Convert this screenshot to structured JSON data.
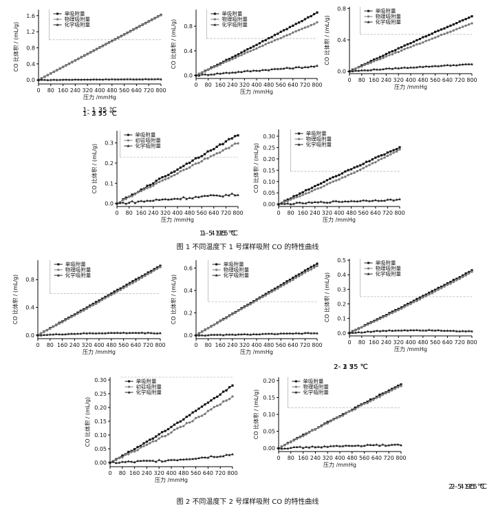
{
  "figure_captions": [
    "图 1    不同温度下 1 号煤样吸附 CO 的特性曲线",
    "图 2    不同温度下 2 号煤样吸附 CO 的特性曲线"
  ],
  "series_colors": [
    "#111111",
    "#7a7a7a",
    "#222222"
  ],
  "chart_data": [
    {
      "id": "1-1",
      "type": "line",
      "caption": "1- 1    35 ℃",
      "xlabel": "压力 /mmHg",
      "ylabel": "CO 比体积 / (mL/g)",
      "xlim": [
        0,
        800
      ],
      "ylim": [
        -0.1,
        1.75
      ],
      "xticks": [
        0,
        80,
        160,
        240,
        320,
        400,
        480,
        560,
        640,
        720,
        800
      ],
      "yticks": [
        0.0,
        0.4,
        0.8,
        1.2,
        1.6
      ],
      "ytick_labels": [
        "0.0",
        "0.4",
        "0.8",
        "1.2",
        "1.6"
      ],
      "ref_y": 1.0,
      "legend_x": 70,
      "legend_placement": "top-left",
      "series": [
        {
          "name": "单吸附量",
          "marker": "square",
          "x": [
            0,
            800
          ],
          "y": [
            0.0,
            1.62
          ],
          "y_mid": 0.81,
          "jitter": 0
        },
        {
          "name": "物理吸附量",
          "marker": "circle",
          "x": [
            0,
            800
          ],
          "y": [
            0.0,
            1.61
          ],
          "y_mid": 0.8,
          "jitter": 0
        },
        {
          "name": "化学吸附量",
          "marker": "triangle",
          "x": [
            0,
            800
          ],
          "y": [
            0.0,
            0.02
          ],
          "y_mid": 0.015,
          "jitter": 0.004
        }
      ]
    },
    {
      "id": "1-2",
      "type": "line",
      "caption": "1- 2    55 ℃",
      "xlabel": "压力 /mmHg",
      "ylabel": "CO 比体积 / (mL/g)",
      "xlim": [
        0,
        800
      ],
      "ylim": [
        -0.05,
        1.07
      ],
      "xticks": [
        0,
        80,
        160,
        240,
        320,
        400,
        480,
        560,
        640,
        720,
        800
      ],
      "yticks": [
        0.0,
        0.4,
        0.8
      ],
      "ytick_labels": [
        "0.0",
        "0.4",
        "0.8"
      ],
      "ref_y": 0.6,
      "legend_x": 70,
      "legend_placement": "top-left",
      "series": [
        {
          "name": "单吸附量",
          "marker": "square",
          "x": [
            0,
            800
          ],
          "y": [
            0.0,
            1.02
          ],
          "y_mid": 0.5,
          "jitter": 0.005
        },
        {
          "name": "物理吸附量",
          "marker": "circle",
          "x": [
            0,
            800
          ],
          "y": [
            0.0,
            0.86
          ],
          "y_mid": 0.44,
          "jitter": 0.005
        },
        {
          "name": "化学吸附量",
          "marker": "triangle",
          "x": [
            0,
            800
          ],
          "y": [
            0.0,
            0.15
          ],
          "y_mid": 0.08,
          "jitter": 0.01
        }
      ]
    },
    {
      "id": "1-3",
      "type": "line",
      "caption": "1- 3    75 ℃",
      "xlabel": "压力 /mmHg",
      "ylabel": "CO 比体积 / (mL/g)",
      "xlim": [
        0,
        800
      ],
      "ylim": [
        -0.03,
        0.82
      ],
      "xticks": [
        0,
        80,
        160,
        240,
        320,
        400,
        480,
        560,
        640,
        720,
        800
      ],
      "yticks": [
        0.0,
        0.4,
        0.8
      ],
      "ytick_labels": [
        "0.0",
        "0.4",
        "0.8"
      ],
      "ref_y": 0.47,
      "legend_x": 70,
      "legend_placement": "top-left",
      "series": [
        {
          "name": "单吸附量",
          "marker": "square",
          "x": [
            0,
            800
          ],
          "y": [
            0.0,
            0.7
          ],
          "y_mid": 0.36,
          "jitter": 0.004
        },
        {
          "name": "物理吸附量",
          "marker": "circle",
          "x": [
            0,
            800
          ],
          "y": [
            0.0,
            0.61
          ],
          "y_mid": 0.31,
          "jitter": 0.004
        },
        {
          "name": "化学吸附量",
          "marker": "triangle",
          "x": [
            0,
            800
          ],
          "y": [
            0.0,
            0.09
          ],
          "y_mid": 0.05,
          "jitter": 0.005
        }
      ]
    },
    {
      "id": "1-4",
      "type": "line",
      "caption": "1- 4    95 ℃",
      "xlabel": "压力 /mmHg",
      "ylabel": "CO 比体积 / (mL/g)",
      "xlim": [
        0,
        800
      ],
      "ylim": [
        -0.015,
        0.36
      ],
      "xticks": [
        0,
        80,
        160,
        240,
        320,
        400,
        480,
        560,
        640,
        720,
        800
      ],
      "yticks": [
        0.0,
        0.1,
        0.2,
        0.3
      ],
      "ytick_labels": [
        "0.0",
        "0.1",
        "0.2",
        "0.3"
      ],
      "ref_y": 0.23,
      "legend_x": 20,
      "legend_placement": "top-left",
      "series": [
        {
          "name": "单吸附量",
          "marker": "square",
          "x": [
            0,
            800
          ],
          "y": [
            0.0,
            0.34
          ],
          "y_mid": 0.17,
          "jitter": 0.004
        },
        {
          "name": "初驻吸附量",
          "marker": "circle",
          "x": [
            0,
            800
          ],
          "y": [
            0.0,
            0.3
          ],
          "y_mid": 0.15,
          "jitter": 0.004
        },
        {
          "name": "化学吸附量",
          "marker": "triangle",
          "x": [
            0,
            800
          ],
          "y": [
            0.0,
            0.045
          ],
          "y_mid": 0.025,
          "jitter": 0.006
        }
      ]
    },
    {
      "id": "1-5",
      "type": "line",
      "caption": "1- 5    115 ℃",
      "xlabel": "压力 /mmHg",
      "ylabel": "CO 比体积 / (mL/g)",
      "xlim": [
        0,
        800
      ],
      "ylim": [
        -0.01,
        0.33
      ],
      "xticks": [
        0,
        80,
        160,
        240,
        320,
        400,
        480,
        560,
        640,
        720,
        800
      ],
      "yticks": [
        0.0,
        0.05,
        0.1,
        0.15,
        0.2,
        0.25,
        0.3
      ],
      "ytick_labels": [
        "0.00",
        "0.05",
        "0.10",
        "0.15",
        "0.20",
        "0.25",
        "0.30"
      ],
      "ref_y": 0.145,
      "legend_x": 80,
      "legend_placement": "top-left",
      "series": [
        {
          "name": "单吸附量",
          "marker": "square",
          "x": [
            0,
            800
          ],
          "y": [
            0.0,
            0.25
          ],
          "y_mid": 0.13,
          "jitter": 0.002
        },
        {
          "name": "物理吸附量",
          "marker": "circle",
          "x": [
            0,
            800
          ],
          "y": [
            0.0,
            0.24
          ],
          "y_mid": 0.11,
          "jitter": 0.002
        },
        {
          "name": "化学吸附量",
          "marker": "triangle",
          "x": [
            0,
            800
          ],
          "y": [
            0.0,
            0.02
          ],
          "y_mid": 0.012,
          "jitter": 0.003
        }
      ]
    },
    {
      "id": "2-1",
      "type": "line",
      "caption": "2- 1    35 ℃",
      "xlabel": "压力 /mmHg",
      "ylabel": "CO 比体积 / (mL/g)",
      "xlim": [
        0,
        800
      ],
      "ylim": [
        -0.05,
        1.08
      ],
      "xticks": [
        0,
        80,
        160,
        240,
        320,
        400,
        480,
        560,
        640,
        720,
        800
      ],
      "yticks": [
        0.0,
        0.4,
        0.8
      ],
      "ytick_labels": [
        "0.0",
        "0.4",
        "0.8"
      ],
      "ref_y": 0.6,
      "legend_x": 80,
      "legend_placement": "top-left",
      "series": [
        {
          "name": "单吸附量",
          "marker": "square",
          "x": [
            0,
            800
          ],
          "y": [
            0.0,
            1.0
          ],
          "y_mid": 0.5,
          "jitter": 0.003
        },
        {
          "name": "物理吸附量",
          "marker": "circle",
          "x": [
            0,
            800
          ],
          "y": [
            0.0,
            0.98
          ],
          "y_mid": 0.48,
          "jitter": 0.003
        },
        {
          "name": "化学吸附量",
          "marker": "triangle",
          "x": [
            0,
            800
          ],
          "y": [
            0.0,
            0.03
          ],
          "y_mid": 0.03,
          "jitter": 0.005
        }
      ]
    },
    {
      "id": "2-2",
      "type": "line",
      "caption": "2- 2    55 ℃",
      "xlabel": "压力 /mmHg",
      "ylabel": "CO 比体积 / (mL/g)",
      "xlim": [
        0,
        800
      ],
      "ylim": [
        -0.03,
        0.67
      ],
      "xticks": [
        0,
        80,
        160,
        240,
        320,
        400,
        480,
        560,
        640,
        720,
        800
      ],
      "yticks": [
        0.0,
        0.2,
        0.4,
        0.6
      ],
      "ytick_labels": [
        "0.0",
        "0.2",
        "0.4",
        "0.6"
      ],
      "ref_y": 0.3,
      "legend_x": 80,
      "legend_placement": "top-left",
      "series": [
        {
          "name": "单吸附量",
          "marker": "square",
          "x": [
            0,
            800
          ],
          "y": [
            0.0,
            0.64
          ],
          "y_mid": 0.32,
          "jitter": 0.002
        },
        {
          "name": "物理吸附量",
          "marker": "circle",
          "x": [
            0,
            800
          ],
          "y": [
            0.0,
            0.62
          ],
          "y_mid": 0.31,
          "jitter": 0.002
        },
        {
          "name": "化学吸附量",
          "marker": "triangle",
          "x": [
            0,
            800
          ],
          "y": [
            0.0,
            0.02
          ],
          "y_mid": 0.01,
          "jitter": 0.003
        }
      ]
    },
    {
      "id": "2-3",
      "type": "line",
      "caption": "2- 3    75 ℃",
      "xlabel": "压力 /mmHg",
      "ylabel": "CO 比体积 / (mL/g)",
      "xlim": [
        0,
        800
      ],
      "ylim": [
        -0.02,
        0.51
      ],
      "xticks": [
        0,
        80,
        160,
        240,
        320,
        400,
        480,
        560,
        640,
        720,
        800
      ],
      "yticks": [
        0.0,
        0.1,
        0.2,
        0.3,
        0.4,
        0.5
      ],
      "ytick_labels": [
        "0.0",
        "0.1",
        "0.2",
        "0.3",
        "0.4",
        "0.5"
      ],
      "ref_y": 0.25,
      "legend_x": 70,
      "legend_placement": "top-left",
      "series": [
        {
          "name": "单吸附量",
          "marker": "square",
          "x": [
            0,
            800
          ],
          "y": [
            0.0,
            0.43
          ],
          "y_mid": 0.21,
          "jitter": 0.002
        },
        {
          "name": "物理吸附量",
          "marker": "circle",
          "x": [
            0,
            800
          ],
          "y": [
            0.0,
            0.42
          ],
          "y_mid": 0.2,
          "jitter": 0.002
        },
        {
          "name": "化学吸附量",
          "marker": "triangle",
          "x": [
            0,
            800
          ],
          "y": [
            0.0,
            0.01
          ],
          "y_mid": 0.02,
          "jitter": 0.003
        }
      ]
    },
    {
      "id": "2-4",
      "type": "line",
      "caption": "2- 4    95 ℃",
      "xlabel": "压力 /mmHg",
      "ylabel": "CO 比体积 / (mL/g)",
      "xlim": [
        0,
        800
      ],
      "ylim": [
        -0.015,
        0.31
      ],
      "xticks": [
        0,
        80,
        160,
        240,
        320,
        400,
        480,
        560,
        640,
        720,
        800
      ],
      "yticks": [
        0.0,
        0.05,
        0.1,
        0.15,
        0.2,
        0.25,
        0.3
      ],
      "ytick_labels": [
        "0.00",
        "0.05",
        "0.10",
        "0.15",
        "0.20",
        "0.25",
        "0.30"
      ],
      "ref_y": 0.31,
      "legend_x": 70,
      "legend_placement": "top-left",
      "series": [
        {
          "name": "单吸附量",
          "marker": "square",
          "x": [
            0,
            800
          ],
          "y": [
            0.0,
            0.28
          ],
          "y_mid": 0.13,
          "jitter": 0.002
        },
        {
          "name": "初驻吸附量",
          "marker": "circle",
          "x": [
            0,
            800
          ],
          "y": [
            0.0,
            0.24
          ],
          "y_mid": 0.11,
          "jitter": 0.003
        },
        {
          "name": "化学吸附量",
          "marker": "triangle",
          "x": [
            0,
            800
          ],
          "y": [
            0.0,
            0.03
          ],
          "y_mid": 0.01,
          "jitter": 0.004
        }
      ]
    },
    {
      "id": "2-5",
      "type": "line",
      "caption": "2- 5    115 ℃",
      "xlabel": "压力 /mmHg",
      "ylabel": "CO 比体积 / (mL/g)",
      "xlim": [
        0,
        800
      ],
      "ylim": [
        -0.01,
        0.21
      ],
      "xticks": [
        0,
        80,
        160,
        240,
        320,
        400,
        480,
        560,
        640,
        720,
        800
      ],
      "yticks": [
        0.0,
        0.05,
        0.1,
        0.15,
        0.2
      ],
      "ytick_labels": [
        "0.00",
        "0.05",
        "0.10",
        "0.15",
        "0.20"
      ],
      "ref_y": 0.12,
      "legend_x": 60,
      "legend_placement": "top-left",
      "series": [
        {
          "name": "单吸附量",
          "marker": "square",
          "x": [
            0,
            800
          ],
          "y": [
            0.0,
            0.19
          ],
          "y_mid": 0.095,
          "jitter": 0.0015
        },
        {
          "name": "物理吸附量",
          "marker": "circle",
          "x": [
            0,
            800
          ],
          "y": [
            0.0,
            0.185
          ],
          "y_mid": 0.093,
          "jitter": 0.0015
        },
        {
          "name": "化学吸附量",
          "marker": "triangle",
          "x": [
            0,
            800
          ],
          "y": [
            0.0,
            0.01
          ],
          "y_mid": 0.006,
          "jitter": 0.002
        }
      ]
    }
  ]
}
